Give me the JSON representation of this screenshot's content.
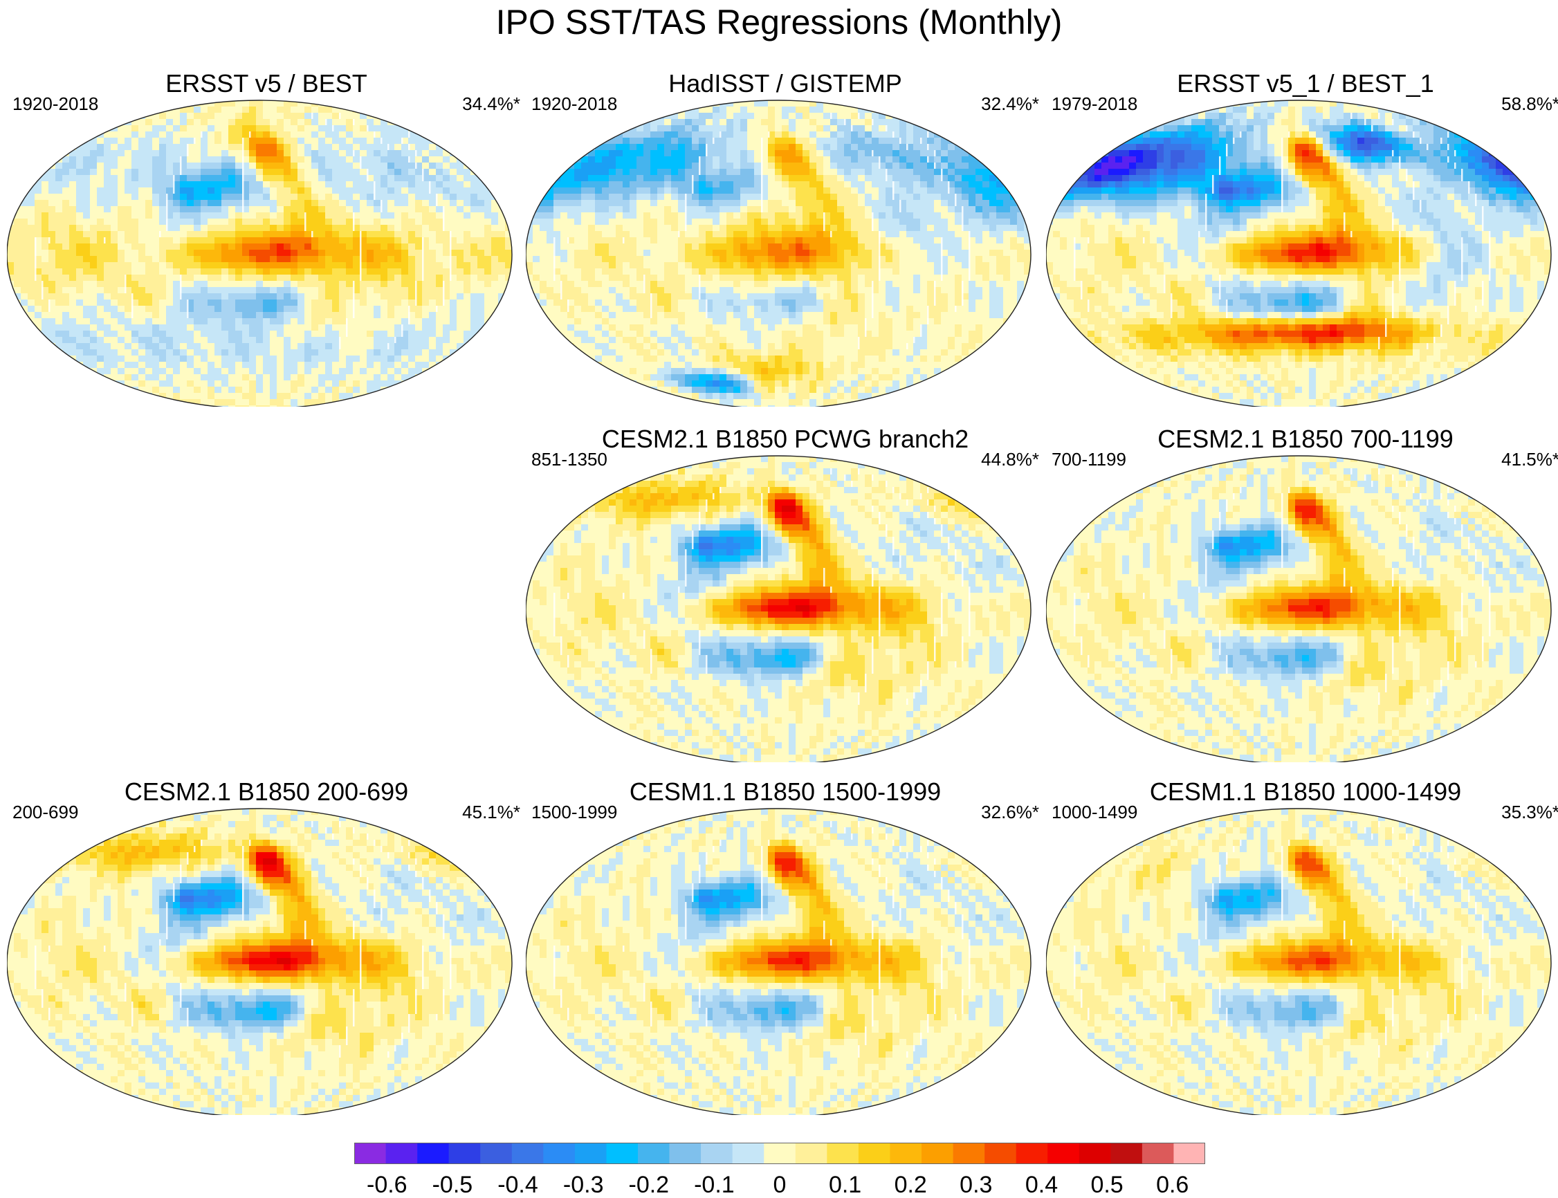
{
  "title": "IPO SST/TAS Regressions (Monthly)",
  "chart_data": {
    "type": "heatmap",
    "description_of_marks": "Global regression maps of SST/TAS onto the IPO index",
    "panels": [
      {
        "id": "p1",
        "title": "ERSST v5 / BEST",
        "period": "1920-2018",
        "variance_explained": "34.4%*",
        "row": 0,
        "col": 0,
        "pattern": "obs_weak"
      },
      {
        "id": "p2",
        "title": "HadISST / GISTEMP",
        "period": "1920-2018",
        "variance_explained": "32.4%*",
        "row": 0,
        "col": 1,
        "pattern": "obs_cold_land"
      },
      {
        "id": "p3",
        "title": "ERSST v5_1 / BEST_1",
        "period": "1979-2018",
        "variance_explained": "58.8%*",
        "row": 0,
        "col": 2,
        "pattern": "obs_strong"
      },
      {
        "id": "p4",
        "title": "CESM2.1 B1850 PCWG branch2",
        "period": "851-1350",
        "variance_explained": "44.8%*",
        "row": 1,
        "col": 1,
        "pattern": "model_strong"
      },
      {
        "id": "p5",
        "title": "CESM2.1 B1850 700-1199",
        "period": "700-1199",
        "variance_explained": "41.5%*",
        "row": 1,
        "col": 2,
        "pattern": "model"
      },
      {
        "id": "p6",
        "title": "CESM2.1 B1850 200-699",
        "period": "200-699",
        "variance_explained": "45.1%*",
        "row": 2,
        "col": 0,
        "pattern": "model_strong"
      },
      {
        "id": "p7",
        "title": "CESM1.1 B1850 1500-1999",
        "period": "1500-1999",
        "variance_explained": "32.6%*",
        "row": 2,
        "col": 1,
        "pattern": "model"
      },
      {
        "id": "p8",
        "title": "CESM1.1 B1850 1000-1499",
        "period": "1000-1499",
        "variance_explained": "35.3%*",
        "row": 2,
        "col": 2,
        "pattern": "model_weak"
      }
    ],
    "colorbar": {
      "colors": [
        "#8a2be2",
        "#5a22f0",
        "#1b1bff",
        "#2e3fe6",
        "#3b5fe0",
        "#3a77e8",
        "#2b8cf5",
        "#1aa0f5",
        "#00bfff",
        "#45b4ee",
        "#7fc0ec",
        "#a9d4f2",
        "#c6e6f7",
        "#fffbc2",
        "#fff09a",
        "#fde24d",
        "#fbcf18",
        "#fdb80b",
        "#fc9f00",
        "#fa7a00",
        "#f54c00",
        "#f71e00",
        "#f50000",
        "#dd0000",
        "#c00f0f",
        "#dc5a5a",
        "#ffb4b4"
      ],
      "tick_values": [
        -0.6,
        -0.5,
        -0.4,
        -0.3,
        -0.2,
        -0.1,
        0,
        0.1,
        0.2,
        0.3,
        0.4,
        0.5,
        0.6
      ],
      "tick_labels": [
        "-0.6",
        "-0.5",
        "-0.4",
        "-0.3",
        "-0.2",
        "-0.1",
        "0",
        "0.1",
        "0.2",
        "0.3",
        "0.4",
        "0.5",
        "0.6"
      ],
      "range": [
        -0.65,
        0.65
      ]
    }
  }
}
